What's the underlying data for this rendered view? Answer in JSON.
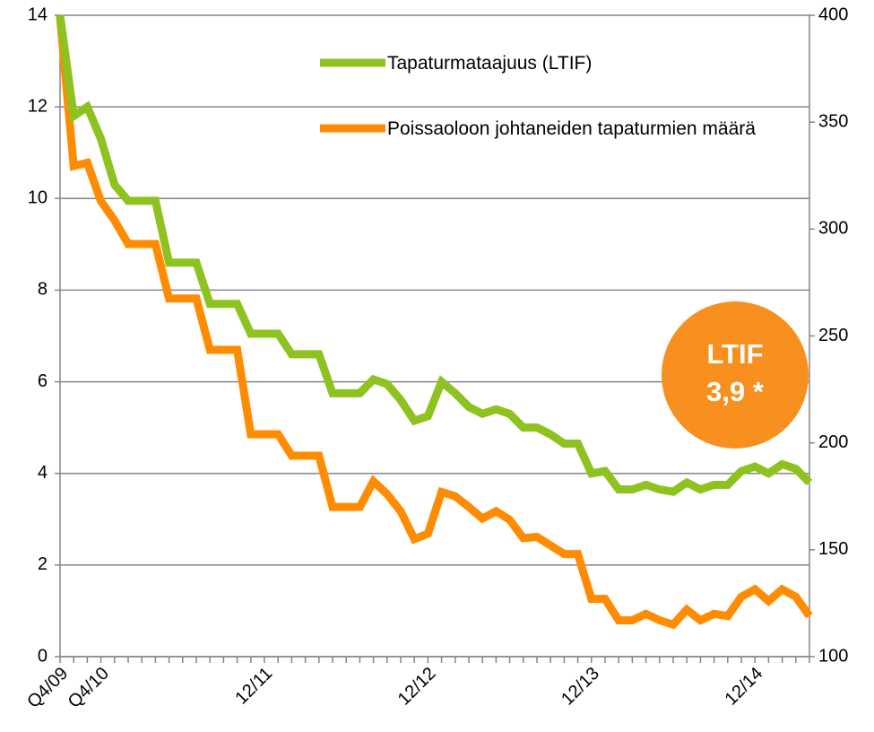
{
  "chart_data": {
    "type": "line",
    "categories": [
      "Q4/09",
      null,
      null,
      "Q4/10",
      null,
      null,
      null,
      null,
      null,
      null,
      null,
      null,
      null,
      null,
      null,
      "12/11",
      null,
      null,
      null,
      null,
      null,
      null,
      null,
      null,
      null,
      null,
      null,
      "12/12",
      null,
      null,
      null,
      null,
      null,
      null,
      null,
      null,
      null,
      null,
      null,
      "12/13",
      null,
      null,
      null,
      null,
      null,
      null,
      null,
      null,
      null,
      null,
      null,
      "12/14",
      null,
      null,
      null,
      null
    ],
    "series": [
      {
        "name": "Tapaturmataajuus (LTIF)",
        "color": "#8dc21f",
        "axis": "y",
        "values": [
          14,
          11.8,
          12.0,
          11.3,
          10.3,
          9.95,
          9.95,
          9.95,
          8.6,
          8.6,
          8.6,
          7.7,
          7.7,
          7.7,
          7.05,
          7.05,
          7.05,
          6.6,
          6.6,
          6.6,
          5.75,
          5.75,
          5.75,
          6.05,
          5.95,
          5.6,
          5.15,
          5.25,
          6.0,
          5.75,
          5.45,
          5.3,
          5.4,
          5.3,
          5.0,
          5.0,
          4.85,
          4.65,
          4.65,
          4.0,
          4.05,
          3.65,
          3.65,
          3.75,
          3.65,
          3.6,
          3.8,
          3.65,
          3.75,
          3.75,
          4.05,
          4.15,
          4.0,
          4.2,
          4.1,
          3.8
        ]
      },
      {
        "name": "Poissaoloon johtaneiden tapaturmien määrä",
        "color": "#ff8c00",
        "axis": "y2",
        "values": [
          399,
          329.5,
          331,
          313,
          304,
          293,
          293,
          293,
          267.5,
          267.5,
          267.5,
          243.5,
          243.5,
          243.5,
          204,
          204,
          204,
          194,
          194,
          194,
          170,
          170,
          170,
          182,
          176,
          168,
          155,
          157.5,
          177,
          175,
          170,
          164.6,
          168,
          164,
          155.4,
          156,
          152,
          148,
          148,
          127,
          127,
          117,
          117,
          120,
          117,
          115,
          122,
          117,
          120,
          119,
          128,
          131.5,
          126,
          131.5,
          128,
          119
        ]
      }
    ],
    "ylim": [
      0,
      14
    ],
    "yticks": [
      0,
      2,
      4,
      6,
      8,
      10,
      12,
      14
    ],
    "y2lim": [
      100,
      400
    ],
    "y2ticks": [
      100,
      150,
      200,
      250,
      300,
      350,
      400
    ],
    "grid": true,
    "badge": {
      "color": "#f7901e",
      "lines": [
        "LTIF",
        "3,9 *"
      ]
    }
  }
}
